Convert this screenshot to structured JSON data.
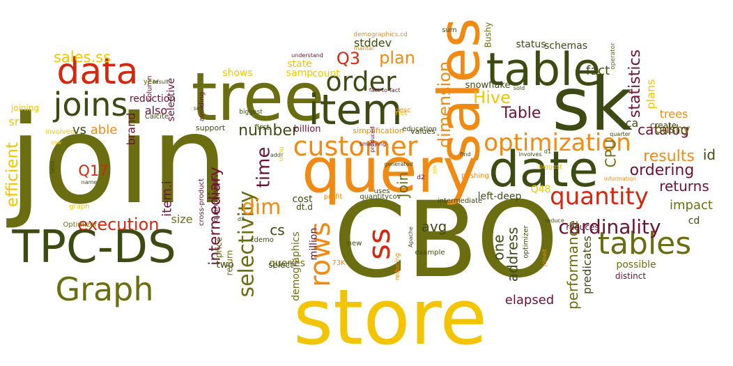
{
  "palette": {
    "dark_olive": "#3d4a12",
    "olive": "#6b6e10",
    "red": "#d8250e",
    "orange": "#f08a12",
    "gold": "#f2c500",
    "maroon": "#6d1230"
  },
  "words": [
    {
      "text": "join",
      "color": "olive"
    },
    {
      "text": "CBO",
      "color": "olive"
    },
    {
      "text": "store",
      "color": "gold"
    },
    {
      "text": "query",
      "color": "orange"
    },
    {
      "text": "sk",
      "color": "dark_olive"
    },
    {
      "text": "tree",
      "color": "olive"
    },
    {
      "text": "sales",
      "color": "orange"
    },
    {
      "text": "TPC-DS",
      "color": "dark_olive"
    },
    {
      "text": "item",
      "color": "dark_olive"
    },
    {
      "text": "table",
      "color": "dark_olive"
    },
    {
      "text": "date",
      "color": "dark_olive"
    },
    {
      "text": "data",
      "color": "red"
    },
    {
      "text": "joins",
      "color": "dark_olive"
    },
    {
      "text": "Graph",
      "color": "olive"
    },
    {
      "text": "customer",
      "color": "orange"
    },
    {
      "text": "optimization",
      "color": "orange"
    },
    {
      "text": "order",
      "color": "dark_olive"
    },
    {
      "text": "tables",
      "color": "olive"
    },
    {
      "text": "quantity",
      "color": "red"
    },
    {
      "text": "cardinality",
      "color": "maroon"
    },
    {
      "text": "selectivity",
      "color": "olive"
    },
    {
      "text": "intermediary",
      "color": "maroon"
    },
    {
      "text": "rows",
      "color": "orange"
    },
    {
      "text": "ss",
      "color": "red"
    },
    {
      "text": "dim",
      "color": "orange"
    },
    {
      "text": "time",
      "color": "maroon"
    },
    {
      "text": "execution",
      "color": "red"
    },
    {
      "text": "efficient",
      "color": "gold"
    },
    {
      "text": "dimension",
      "color": "orange"
    },
    {
      "text": "statistics",
      "color": "maroon"
    },
    {
      "text": "number",
      "color": "dark_olive"
    },
    {
      "text": "Table",
      "color": "maroon"
    },
    {
      "text": "Hive",
      "color": "gold"
    },
    {
      "text": "Q3",
      "color": "red"
    },
    {
      "text": "plan",
      "color": "orange"
    },
    {
      "text": "sales.ss",
      "color": "gold"
    },
    {
      "text": "results",
      "color": "orange"
    },
    {
      "text": "ordering",
      "color": "maroon"
    },
    {
      "text": "returns",
      "color": "maroon"
    },
    {
      "text": "performance",
      "color": "olive"
    },
    {
      "text": "predicates",
      "color": "dark_olive"
    },
    {
      "text": "address",
      "color": "dark_olive"
    },
    {
      "text": "one",
      "color": "dark_olive"
    },
    {
      "text": "Join",
      "color": "olive"
    },
    {
      "text": "CPU",
      "color": "olive"
    },
    {
      "text": "catalog",
      "color": "maroon"
    },
    {
      "text": "Q17",
      "color": "red"
    },
    {
      "text": "item.i",
      "color": "maroon"
    },
    {
      "text": "fact",
      "color": "dark_olive"
    },
    {
      "text": "bushy",
      "color": "olive"
    },
    {
      "text": "impact",
      "color": "olive"
    },
    {
      "text": "cs",
      "color": "dark_olive"
    },
    {
      "text": "avg",
      "color": "dark_olive"
    },
    {
      "text": "elapsed",
      "color": "maroon"
    },
    {
      "text": "also",
      "color": "maroon"
    },
    {
      "text": "vs",
      "color": "dark_olive"
    },
    {
      "text": "able",
      "color": "orange"
    },
    {
      "text": "sr",
      "color": "gold"
    },
    {
      "text": "id",
      "color": "dark_olive"
    },
    {
      "text": "ca",
      "color": "dark_olive"
    },
    {
      "text": "cd",
      "color": "dark_olive"
    },
    {
      "text": "size",
      "color": "olive"
    },
    {
      "text": "brand",
      "color": "maroon"
    },
    {
      "text": "stddev",
      "color": "dark_olive"
    },
    {
      "text": "state",
      "color": "gold"
    },
    {
      "text": "count",
      "color": "gold"
    },
    {
      "text": "samp",
      "color": "gold"
    },
    {
      "text": "shows",
      "color": "gold"
    },
    {
      "text": "trees",
      "color": "orange"
    },
    {
      "text": "plans",
      "color": "gold"
    },
    {
      "text": "status",
      "color": "dark_olive"
    },
    {
      "text": "schemas",
      "color": "dark_olive"
    },
    {
      "text": "snowflake",
      "color": "dark_olive"
    },
    {
      "text": "Bushy",
      "color": "olive"
    },
    {
      "text": "million",
      "color": "maroon"
    },
    {
      "text": "selective",
      "color": "maroon"
    },
    {
      "text": "reduction",
      "color": "maroon"
    },
    {
      "text": "left-deep",
      "color": "dark_olive"
    },
    {
      "text": "possible",
      "color": "olive"
    },
    {
      "text": "distinct",
      "color": "maroon"
    },
    {
      "text": "reduces",
      "color": "maroon"
    },
    {
      "text": "two",
      "color": "dark_olive"
    },
    {
      "text": "queries",
      "color": "olive"
    },
    {
      "text": "select",
      "color": "dark_olive"
    },
    {
      "text": "demographics",
      "color": "olive"
    },
    {
      "text": "cost",
      "color": "dark_olive"
    },
    {
      "text": "billion",
      "color": "maroon"
    },
    {
      "text": "dt.d",
      "color": "dark_olive"
    },
    {
      "text": "desc",
      "color": "orange"
    },
    {
      "text": "values",
      "color": "dark_olive"
    },
    {
      "text": "simplification",
      "color": "orange"
    },
    {
      "text": "Q48",
      "color": "gold"
    },
    {
      "text": "create",
      "color": "dark_olive"
    },
    {
      "text": "support",
      "color": "dark_olive"
    },
    {
      "text": "avoiding",
      "color": "maroon"
    },
    {
      "text": "Calcite",
      "color": "dark_olive"
    },
    {
      "text": "joining",
      "color": "gold"
    },
    {
      "text": "column",
      "color": "maroon"
    },
    {
      "text": "year",
      "color": "olive"
    },
    {
      "text": "result",
      "color": "dark_olive"
    },
    {
      "text": "set",
      "color": "dark_olive"
    },
    {
      "text": "first",
      "color": "dark_olive"
    },
    {
      "text": "biggest",
      "color": "dark_olive"
    },
    {
      "text": "fact-to-fact",
      "color": "maroon"
    },
    {
      "text": "sold",
      "color": "dark_olive"
    },
    {
      "text": "understand",
      "color": "maroon"
    },
    {
      "text": "marital",
      "color": "orange"
    },
    {
      "text": "demographics.cd",
      "color": "orange"
    },
    {
      "text": "sum",
      "color": "dark_olive"
    },
    {
      "text": "reduce",
      "color": "dark_olive"
    },
    {
      "text": "operator",
      "color": "olive"
    },
    {
      "text": "quarter",
      "color": "dark_olive"
    },
    {
      "text": "information",
      "color": "orange"
    },
    {
      "text": "involves",
      "color": "dark_olive"
    },
    {
      "text": "pushing",
      "color": "orange"
    },
    {
      "text": "intermediate",
      "color": "dark_olive"
    },
    {
      "text": "example",
      "color": "dark_olive"
    },
    {
      "text": "cross-product",
      "color": "maroon"
    },
    {
      "text": "price",
      "color": "olive"
    },
    {
      "text": "return",
      "color": "olive"
    },
    {
      "text": "graph",
      "color": "gold"
    },
    {
      "text": "name",
      "color": "dark_olive"
    },
    {
      "text": "Optimizer",
      "color": "olive"
    },
    {
      "text": "optimizer",
      "color": "dark_olive"
    },
    {
      "text": "new",
      "color": "dark_olive"
    },
    {
      "text": "profit",
      "color": "orange"
    },
    {
      "text": "73K",
      "color": "orange"
    },
    {
      "text": "uses",
      "color": "dark_olive"
    },
    {
      "text": "produced",
      "color": "maroon"
    },
    {
      "text": "net",
      "color": "gold"
    },
    {
      "text": "find",
      "color": "dark_olive"
    },
    {
      "text": "joined",
      "color": "orange"
    },
    {
      "text": "quantitycov",
      "color": "dark_olive"
    },
    {
      "text": "quantitystdev",
      "color": "maroon"
    },
    {
      "text": "cdemo",
      "color": "dark_olive"
    },
    {
      "text": "d3",
      "color": "dark_olive"
    },
    {
      "text": "d1",
      "color": "dark_olive"
    },
    {
      "text": "d2",
      "color": "maroon"
    },
    {
      "text": "smallying",
      "color": "maroon"
    },
    {
      "text": "reducing",
      "color": "orange"
    },
    {
      "text": "Apache",
      "color": "dark_olive"
    },
    {
      "text": "education",
      "color": "dark_olive"
    },
    {
      "text": "addr",
      "color": "dark_olive"
    },
    {
      "text": "involved",
      "color": "gold"
    },
    {
      "text": "row",
      "color": "gold"
    },
    {
      "text": "tend",
      "color": "dark_olive"
    },
    {
      "text": "generated",
      "color": "dark_olive"
    },
    {
      "text": "using",
      "color": "gold"
    },
    {
      "text": "ssk",
      "color": "gold"
    },
    {
      "text": "biggest",
      "color": "gold"
    }
  ]
}
